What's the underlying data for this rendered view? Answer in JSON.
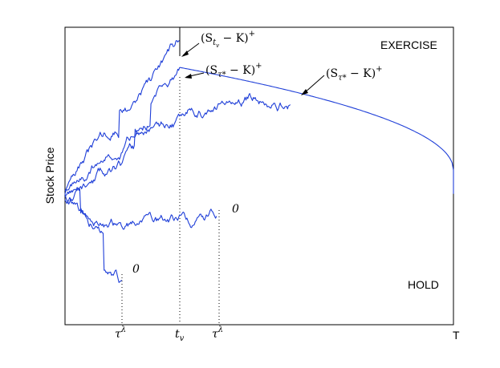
{
  "chart_data": {
    "type": "line",
    "title": "",
    "xlabel": "",
    "ylabel": "Stock Price",
    "xlim": [
      0,
      1
    ],
    "ylim": [
      0,
      1
    ],
    "grid": false,
    "x_tick_labels": {
      "tau_left": "τ",
      "tau_left_sup": "λ",
      "tv": "t",
      "tv_sub": "v",
      "tau_right": "τ",
      "tau_right_sup": "λ",
      "T": "T"
    },
    "regions": {
      "exercise": "EXERCISE",
      "hold": "HOLD"
    },
    "boundary": {
      "name": "exercise-boundary",
      "start_x": 0.295,
      "end_x": 1.0,
      "start_y": 0.865,
      "end_y": 0.52,
      "drop_to_y": 0.44
    },
    "paths": [
      {
        "id": "path-1",
        "start_y": 0.45,
        "end_x": 0.295,
        "end_y": 0.955,
        "seed": 3,
        "vol": 0.012,
        "jumps": [
          [
            0.14,
            0.08
          ]
        ],
        "outcome": "exercise-at-tv"
      },
      {
        "id": "path-2",
        "start_y": 0.44,
        "end_x": 0.295,
        "end_y": 0.865,
        "seed": 7,
        "vol": 0.01,
        "jumps": [
          [
            0.22,
            0.07
          ]
        ],
        "outcome": "exercise-at-boundary"
      },
      {
        "id": "path-3",
        "start_y": 0.42,
        "end_x": 0.58,
        "end_y": 0.74,
        "seed": 11,
        "vol": 0.011,
        "jumps": [
          [
            0.18,
            0.05
          ]
        ],
        "outcome": "exercise-at-boundary"
      },
      {
        "id": "path-4",
        "start_y": 0.43,
        "end_x": 0.39,
        "end_y": 0.365,
        "seed": 19,
        "vol": 0.011,
        "jumps": [
          [
            0.04,
            -0.08
          ]
        ],
        "outcome": "expire-worthless"
      },
      {
        "id": "path-5",
        "start_y": 0.44,
        "end_x": 0.146,
        "end_y": 0.15,
        "seed": 23,
        "vol": 0.012,
        "jumps": [
          [
            0.1,
            -0.13
          ]
        ],
        "outcome": "expire-worthless"
      }
    ],
    "annotations": [
      {
        "id": "payoff-tv",
        "text": "(S",
        "sub": "t",
        "subsub": "v",
        "rest": " − K)",
        "sup": "+"
      },
      {
        "id": "payoff-tau-1",
        "text": "(S",
        "sub": "τ*",
        "rest": " − K)",
        "sup": "+"
      },
      {
        "id": "payoff-tau-2",
        "text": "(S",
        "sub": "τ*",
        "rest": " − K)",
        "sup": "+"
      },
      {
        "id": "zero-1",
        "text": "0"
      },
      {
        "id": "zero-2",
        "text": "0"
      }
    ]
  }
}
